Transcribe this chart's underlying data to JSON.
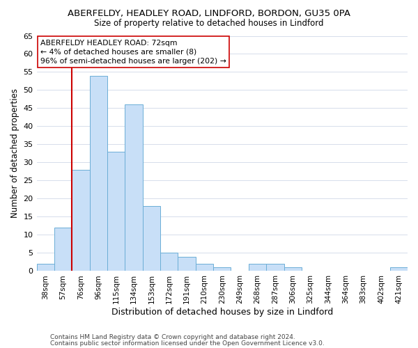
{
  "title": "ABERFELDY, HEADLEY ROAD, LINDFORD, BORDON, GU35 0PA",
  "subtitle": "Size of property relative to detached houses in Lindford",
  "xlabel": "Distribution of detached houses by size in Lindford",
  "ylabel": "Number of detached properties",
  "bar_labels": [
    "38sqm",
    "57sqm",
    "76sqm",
    "96sqm",
    "115sqm",
    "134sqm",
    "153sqm",
    "172sqm",
    "191sqm",
    "210sqm",
    "230sqm",
    "249sqm",
    "268sqm",
    "287sqm",
    "306sqm",
    "325sqm",
    "344sqm",
    "364sqm",
    "383sqm",
    "402sqm",
    "421sqm"
  ],
  "bar_values": [
    2,
    12,
    28,
    54,
    33,
    46,
    18,
    5,
    4,
    2,
    1,
    0,
    2,
    2,
    1,
    0,
    0,
    0,
    0,
    0,
    1
  ],
  "bar_color": "#c8dff7",
  "bar_edge_color": "#6baed6",
  "ylim": [
    0,
    65
  ],
  "yticks": [
    0,
    5,
    10,
    15,
    20,
    25,
    30,
    35,
    40,
    45,
    50,
    55,
    60,
    65
  ],
  "vline_color": "#cc0000",
  "vline_x_index": 1.5,
  "annotation_text": "ABERFELDY HEADLEY ROAD: 72sqm\n← 4% of detached houses are smaller (8)\n96% of semi-detached houses are larger (202) →",
  "annotation_box_color": "#ffffff",
  "annotation_box_edge": "#cc0000",
  "footer_line1": "Contains HM Land Registry data © Crown copyright and database right 2024.",
  "footer_line2": "Contains public sector information licensed under the Open Government Licence v3.0.",
  "background_color": "#ffffff",
  "grid_color": "#d0d8e8"
}
